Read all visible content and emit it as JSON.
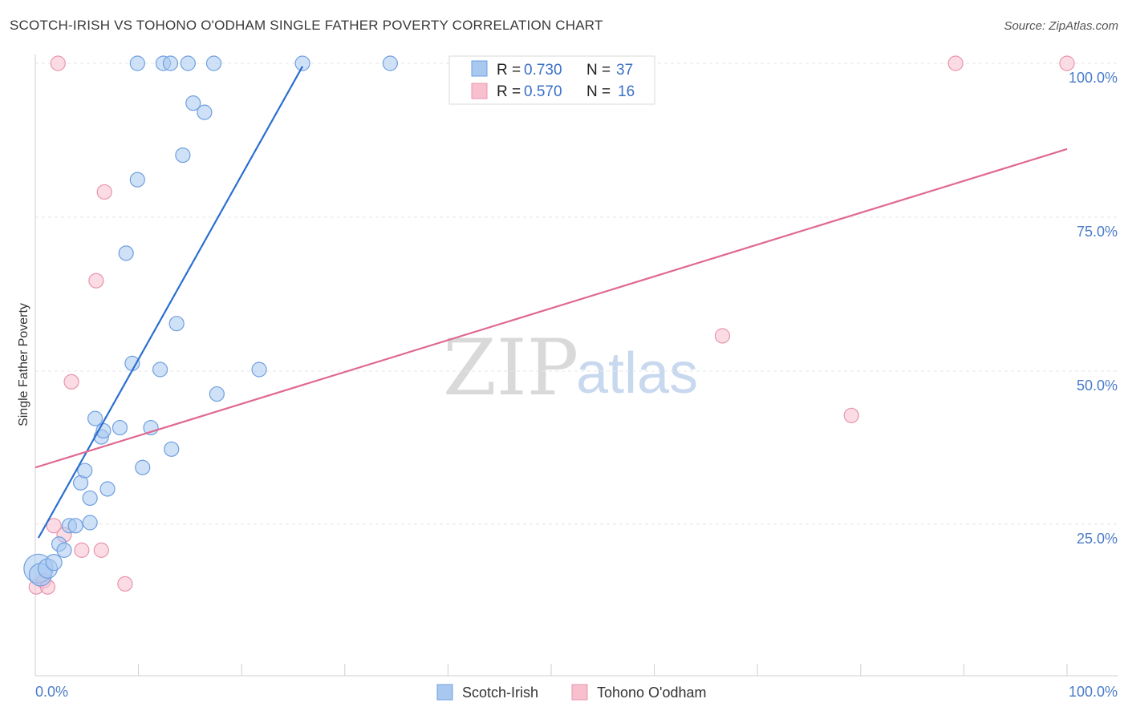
{
  "header": {
    "title": "SCOTCH-IRISH VS TOHONO O'ODHAM SINGLE FATHER POVERTY CORRELATION CHART",
    "source": "Source: ZipAtlas.com"
  },
  "watermark": {
    "zip": "ZIP",
    "atlas": "atlas"
  },
  "colors": {
    "blue_fill": "#a8c8f0",
    "blue_stroke": "#6f9fe0",
    "blue_line": "#2a6fcf",
    "pink_fill": "#f8bfcf",
    "pink_stroke": "#e894ad",
    "pink_line": "#e06890",
    "grid": "#e6e6e6",
    "tick_text": "#4a7cc9"
  },
  "chart_data": {
    "type": "scatter",
    "title": "SCOTCH-IRISH VS TOHONO O'ODHAM SINGLE FATHER POVERTY CORRELATION CHART",
    "xlabel": "",
    "ylabel": "Single Father Poverty",
    "xlim": [
      0,
      100
    ],
    "ylim": [
      0,
      100
    ],
    "x_tick_labels": [
      "0.0%",
      "100.0%"
    ],
    "y_ticks": [
      25,
      50,
      75,
      100
    ],
    "y_tick_labels": [
      "25.0%",
      "50.0%",
      "75.0%",
      "100.0%"
    ],
    "legend_stats": [
      {
        "r_label": "R =",
        "r": "0.730",
        "n_label": "N =",
        "n": "37"
      },
      {
        "r_label": "R =",
        "r": "0.570",
        "n_label": "N =",
        "n": "16"
      }
    ],
    "series": [
      {
        "name": "Scotch-Irish",
        "color": "#a8c8f0",
        "points": [
          [
            0.3,
            17.5,
            18
          ],
          [
            0.5,
            16.5,
            14
          ],
          [
            1.2,
            17.5,
            12
          ],
          [
            1.8,
            18.5,
            10
          ],
          [
            2.3,
            21.5,
            9
          ],
          [
            2.8,
            20.5,
            9
          ],
          [
            3.3,
            24.5,
            9
          ],
          [
            3.9,
            24.5,
            9
          ],
          [
            4.4,
            31.5,
            9
          ],
          [
            4.8,
            33.5,
            9
          ],
          [
            5.3,
            29,
            9
          ],
          [
            5.3,
            25,
            9
          ],
          [
            5.8,
            42,
            9
          ],
          [
            6.4,
            39,
            9
          ],
          [
            6.6,
            40,
            9
          ],
          [
            7.0,
            30.5,
            9
          ],
          [
            8.2,
            40.5,
            9
          ],
          [
            8.8,
            69,
            9
          ],
          [
            9.4,
            51,
            9
          ],
          [
            9.9,
            81,
            9
          ],
          [
            10.4,
            34,
            9
          ],
          [
            11.2,
            40.5,
            9
          ],
          [
            12.1,
            50,
            9
          ],
          [
            13.2,
            37,
            9
          ],
          [
            13.7,
            57.5,
            9
          ],
          [
            14.3,
            85,
            9
          ],
          [
            15.3,
            93.5,
            9
          ],
          [
            16.4,
            92,
            9
          ],
          [
            17.6,
            46,
            9
          ],
          [
            21.7,
            50,
            9
          ],
          [
            9.9,
            100,
            9
          ],
          [
            12.4,
            100,
            9
          ],
          [
            13.1,
            100,
            9
          ],
          [
            14.8,
            100,
            9
          ],
          [
            17.3,
            100,
            9
          ],
          [
            25.9,
            100,
            9
          ],
          [
            34.4,
            100,
            9
          ]
        ]
      },
      {
        "name": "Tohono O'odham",
        "color": "#f8bfcf",
        "points": [
          [
            0.1,
            14.5,
            9
          ],
          [
            0.8,
            15.5,
            9
          ],
          [
            1.2,
            14.5,
            9
          ],
          [
            1.8,
            24.5,
            9
          ],
          [
            2.2,
            100,
            9
          ],
          [
            2.8,
            23,
            9
          ],
          [
            3.5,
            48,
            9
          ],
          [
            4.5,
            20.5,
            9
          ],
          [
            5.9,
            64.5,
            9
          ],
          [
            6.4,
            20.5,
            9
          ],
          [
            6.7,
            79,
            9
          ],
          [
            8.7,
            15,
            9
          ],
          [
            66.6,
            55.5,
            9
          ],
          [
            79.1,
            42.5,
            9
          ],
          [
            89.2,
            100,
            9
          ],
          [
            100,
            100,
            9
          ]
        ]
      }
    ],
    "trend_lines": [
      {
        "name": "Scotch-Irish",
        "x": [
          0.3,
          25.9
        ],
        "y": [
          22.5,
          99.5
        ]
      },
      {
        "name": "Tohono O'odham",
        "x": [
          0,
          100
        ],
        "y": [
          34,
          86
        ]
      }
    ]
  }
}
